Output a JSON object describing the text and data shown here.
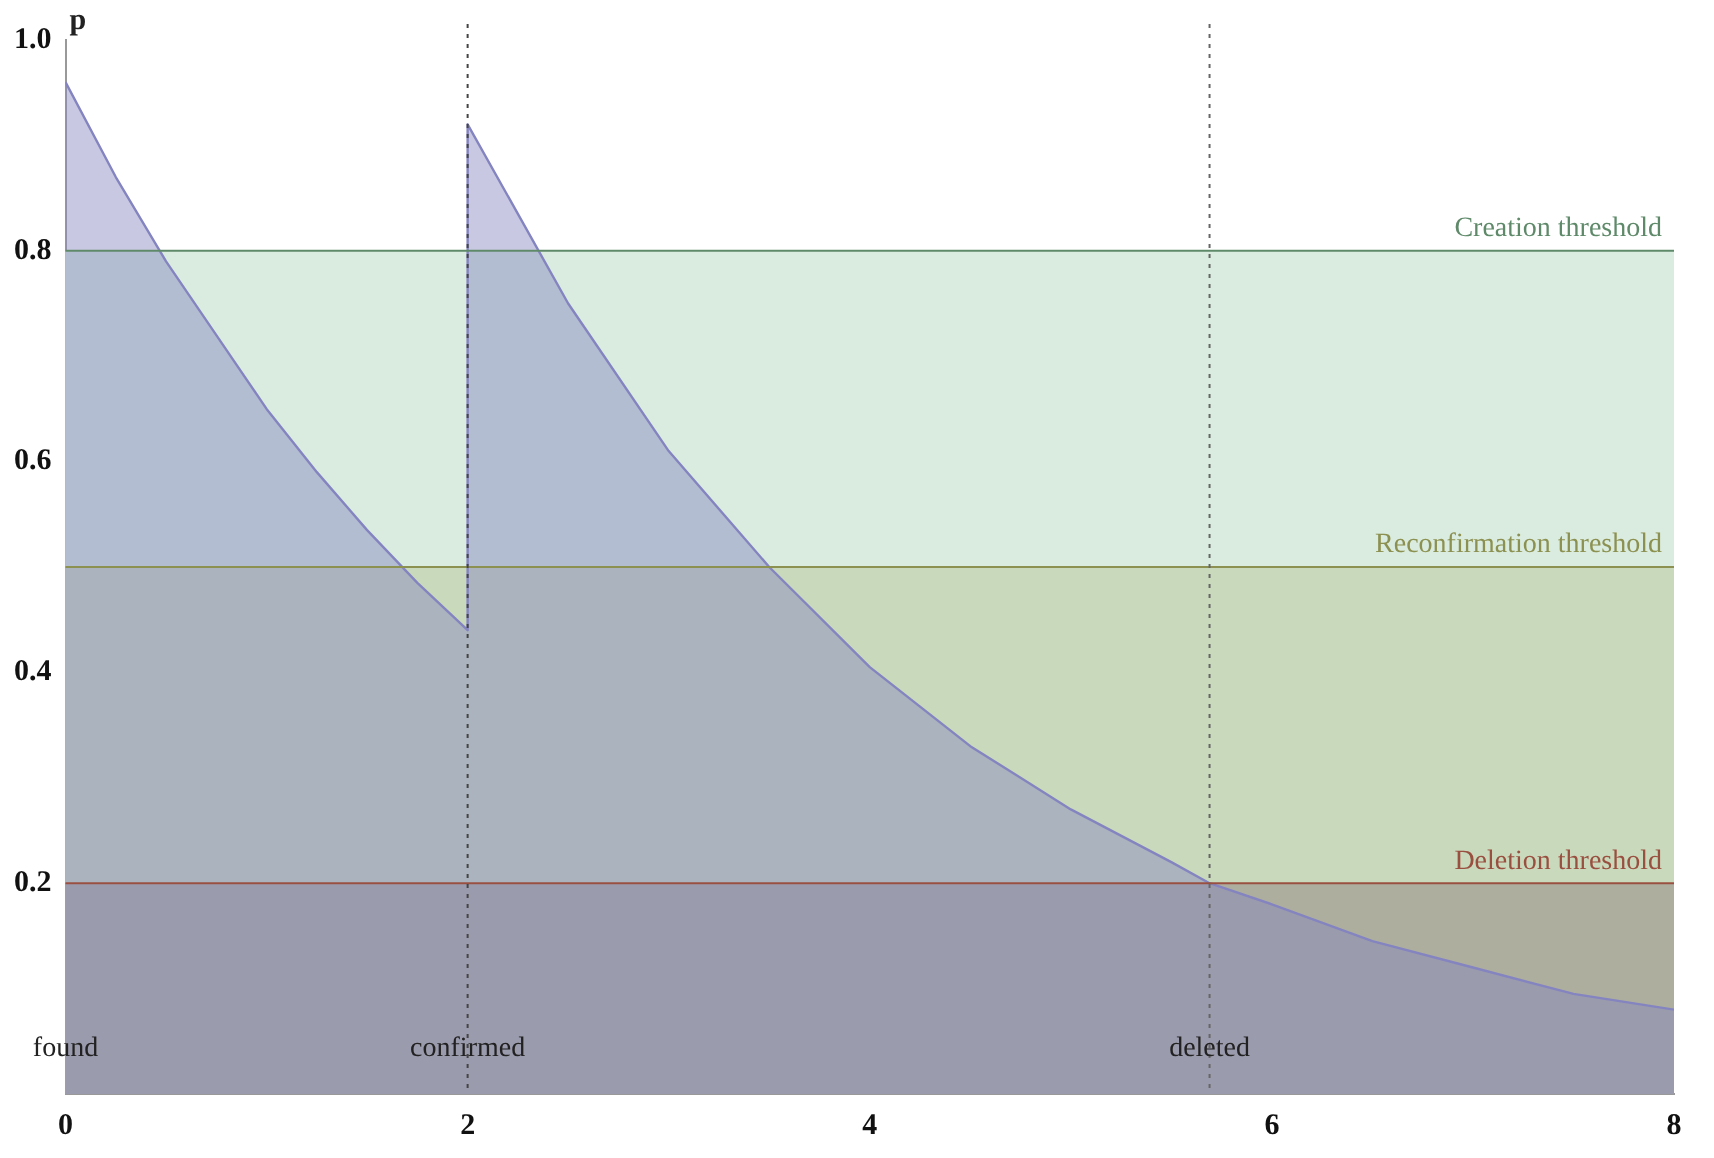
{
  "chart_data": {
    "type": "area",
    "ylabel": "p",
    "series": [
      {
        "color": "#8484c0",
        "x": [
          0,
          0.25,
          0.5,
          0.75,
          1,
          1.25,
          1.5,
          1.75,
          2,
          2,
          2.5,
          3,
          3.5,
          4,
          4.5,
          5,
          5.5,
          5.69,
          6,
          6.5,
          7,
          7.5,
          8
        ],
        "values": [
          0.96,
          0.87,
          0.79,
          0.72,
          0.65,
          0.59,
          0.535,
          0.485,
          0.44,
          0.92,
          0.75,
          0.61,
          0.5,
          0.405,
          0.33,
          0.27,
          0.22,
          0.2,
          0.18,
          0.145,
          0.12,
          0.095,
          0.08
        ]
      }
    ],
    "xlim": [
      0,
      8
    ],
    "xticks": [
      0,
      2,
      4,
      6,
      8
    ],
    "ylim": [
      0,
      1
    ],
    "yticks": [
      0.2,
      0.4,
      0.6,
      0.8,
      {
        "value": 1,
        "label": "1.0"
      }
    ],
    "grid": false,
    "legend": false,
    "bands": [
      {
        "axis": "y",
        "from": 0.5,
        "to": 0.8,
        "color": "#d9ecdf"
      },
      {
        "axis": "y",
        "from": 0.2,
        "to": 0.5,
        "color": "#c9d9bc"
      },
      {
        "axis": "y",
        "from": 0,
        "to": 0.2,
        "color": "#aeae9f"
      }
    ],
    "ref_lines": [
      {
        "axis": "y",
        "value": 0.8,
        "label": "Creation threshold",
        "color": "#5f8a6a"
      },
      {
        "axis": "y",
        "value": 0.5,
        "label": "Reconfirmation threshold",
        "color": "#8c9050"
      },
      {
        "axis": "y",
        "value": 0.2,
        "label": "Deletion threshold",
        "color": "#9a5040"
      },
      {
        "axis": "x",
        "value": 2,
        "color": "#444444",
        "line_style": "dotted"
      },
      {
        "axis": "x",
        "value": 5.69,
        "color": "#666666",
        "line_style": "dotted"
      }
    ],
    "annotations": [
      {
        "text": "found",
        "x": 0,
        "y": 0.03
      },
      {
        "text": "confirmed",
        "x": 2,
        "y": 0.03
      },
      {
        "text": "deleted",
        "x": 5.69,
        "y": 0.03
      }
    ]
  }
}
